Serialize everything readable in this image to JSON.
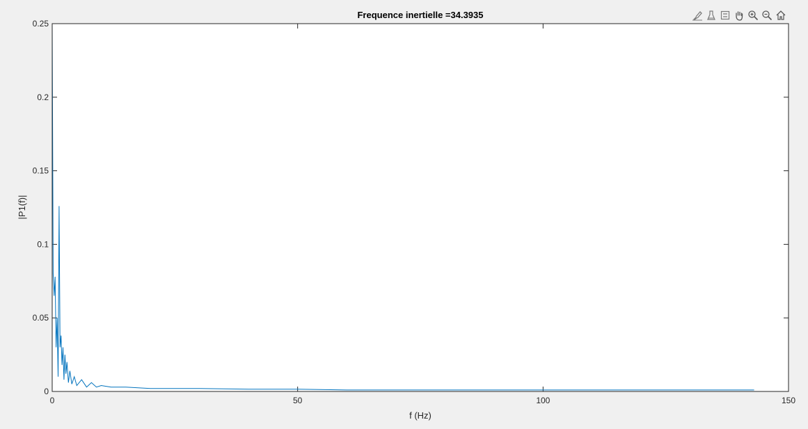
{
  "toolbar": {
    "icons": [
      "brush-icon",
      "data-tips-icon",
      "datatip-icon",
      "pan-icon",
      "zoom-in-icon",
      "zoom-out-icon",
      "home-icon"
    ]
  },
  "chart_data": {
    "type": "line",
    "title": "Frequence inertielle =34.3935",
    "xlabel": "f (Hz)",
    "ylabel": "|P1(f)|",
    "xlim": [
      0,
      150
    ],
    "ylim": [
      0,
      0.25
    ],
    "x_ticks": [
      0,
      50,
      100,
      150
    ],
    "y_ticks": [
      0,
      0.05,
      0.1,
      0.15,
      0.2,
      0.25
    ],
    "x_tick_labels": [
      "0",
      "50",
      "100",
      "150"
    ],
    "y_tick_labels": [
      "0",
      "0.05",
      "0.1",
      "0.15",
      "0.2",
      "0.25"
    ],
    "grid": false,
    "line_color": "#0072bd",
    "series": [
      {
        "x": [
          0,
          0.2,
          0.4,
          0.6,
          0.8,
          1.0,
          1.2,
          1.4,
          1.6,
          1.8,
          2.0,
          2.2,
          2.4,
          2.6,
          2.8,
          3.0,
          3.3,
          3.6,
          4.0,
          4.5,
          5.0,
          6.0,
          7.0,
          8.0,
          9.0,
          10,
          12,
          15,
          20,
          25,
          30,
          40,
          50,
          60,
          70,
          80,
          90,
          100,
          110,
          120,
          130,
          140,
          143
        ],
        "y": [
          0.25,
          0.08,
          0.065,
          0.078,
          0.03,
          0.05,
          0.01,
          0.126,
          0.03,
          0.038,
          0.018,
          0.03,
          0.008,
          0.025,
          0.012,
          0.02,
          0.006,
          0.014,
          0.005,
          0.01,
          0.004,
          0.008,
          0.003,
          0.006,
          0.003,
          0.004,
          0.003,
          0.003,
          0.002,
          0.002,
          0.002,
          0.0015,
          0.0015,
          0.001,
          0.001,
          0.001,
          0.001,
          0.001,
          0.001,
          0.001,
          0.001,
          0.001,
          0.001
        ]
      }
    ]
  }
}
